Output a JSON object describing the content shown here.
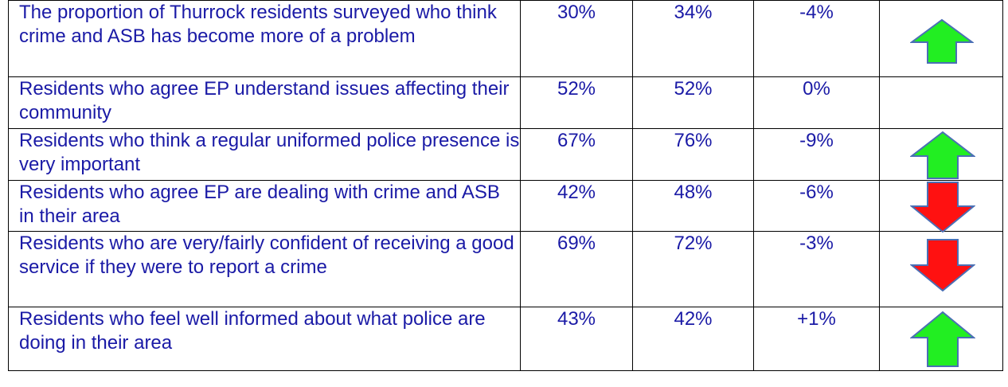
{
  "rows": [
    {
      "measure": "The proportion of Thurrock residents surveyed who think crime and ASB has become more of a problem",
      "current": "30%",
      "previous": "34%",
      "change": "-4%",
      "trend": "up",
      "color": "#22ee22"
    },
    {
      "measure": "Residents who agree EP understand issues affecting their community",
      "current": "52%",
      "previous": "52%",
      "change": "0%",
      "trend": "none",
      "color": ""
    },
    {
      "measure": "Residents who think a regular uniformed police presence is very important",
      "current": "67%",
      "previous": "76%",
      "change": "-9%",
      "trend": "up",
      "color": "#22ee22"
    },
    {
      "measure": "Residents who agree EP are dealing with crime and ASB in their area",
      "current": "42%",
      "previous": "48%",
      "change": "-6%",
      "trend": "down",
      "color": "#ff1111"
    },
    {
      "measure": "Residents who are very/fairly confident of receiving a good service if they were to report a crime",
      "current": "69%",
      "previous": "72%",
      "change": "-3%",
      "trend": "down",
      "color": "#ff1111"
    },
    {
      "measure": "Residents who feel well informed about what police are doing in their area",
      "current": "43%",
      "previous": "42%",
      "change": "+1%",
      "trend": "up",
      "color": "#22ee22"
    }
  ],
  "icons": {
    "up": "green-up-arrow-icon",
    "down": "red-down-arrow-icon"
  }
}
